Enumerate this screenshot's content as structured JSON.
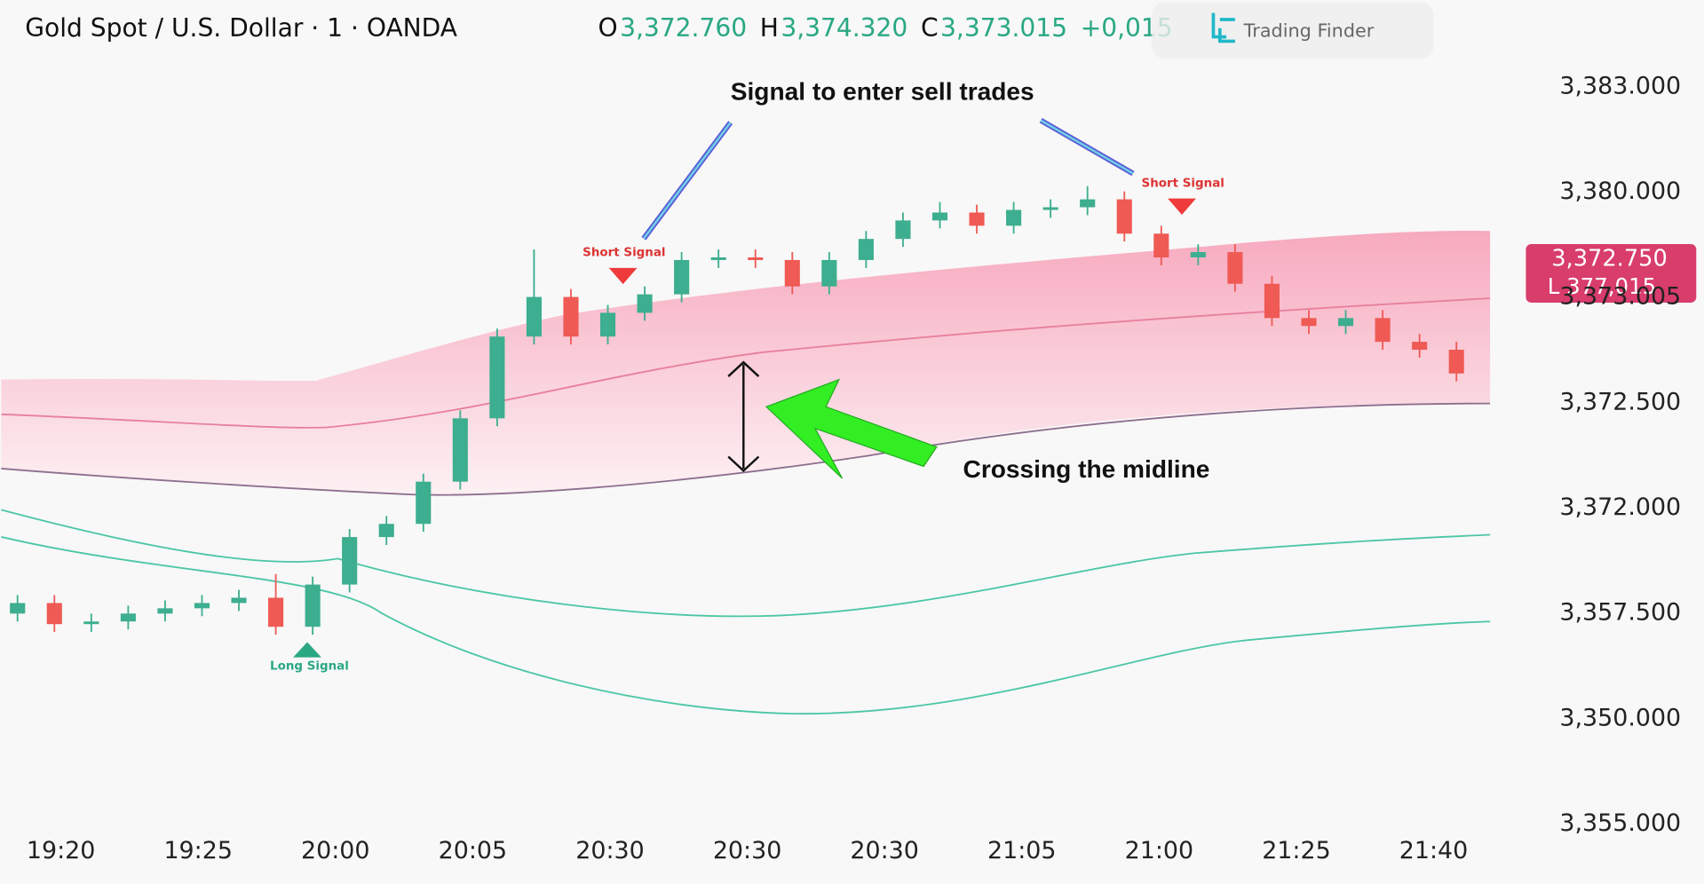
{
  "chart_data": {
    "type": "candlestick",
    "title": "Gold Spot / U.S. Dollar · 1 · OANDA",
    "ohlc_header": [
      {
        "key": "O",
        "value": "3,372.760"
      },
      {
        "key": "H",
        "value": "3,374.320"
      },
      {
        "key": "C",
        "value": "3,373.015"
      },
      {
        "key": "",
        "value": "+0,015"
      }
    ],
    "logo": "Trading Finder",
    "price_badge": [
      "3,372.750",
      "L 377,015"
    ],
    "y_axis_labels": [
      "3,383.000",
      "3,380.000",
      "3,373.005",
      "3,372.500",
      "3,372.000",
      "3,357.500",
      "3,350.000",
      "3,355.000"
    ],
    "x_axis_labels": [
      "19:20",
      "19:25",
      "20:00",
      "20:05",
      "20:30",
      "20:30",
      "20:30",
      "21:05",
      "21:00",
      "21:25",
      "21:40"
    ],
    "annotations": {
      "sell": "Signal to enter sell trades",
      "midline": "Crossing the midline",
      "short1": "Short Signal",
      "short2": "Short Signal",
      "long": "Long Signal"
    },
    "ylim": [
      3354.6,
      3384.2
    ],
    "up_color": "#3dae8f",
    "down_color": "#ef5a55",
    "open": [
      3363.0,
      3363.4,
      3362.6,
      3362.7,
      3363.0,
      3363.2,
      3363.4,
      3363.6,
      3362.5,
      3364.1,
      3365.9,
      3366.4,
      3368.0,
      3370.4,
      3373.5,
      3375.0,
      3373.5,
      3374.4,
      3375.1,
      3376.4,
      3376.5,
      3376.4,
      3375.4,
      3376.4,
      3377.2,
      3377.9,
      3378.2,
      3377.7,
      3378.3,
      3378.4,
      3378.7,
      3377.4,
      3376.5,
      3376.7,
      3375.5,
      3374.2,
      3373.9,
      3374.2,
      3373.3,
      3373.0
    ],
    "high": [
      3363.7,
      3363.7,
      3363.0,
      3363.3,
      3363.5,
      3363.7,
      3363.9,
      3364.5,
      3364.4,
      3366.2,
      3366.7,
      3368.3,
      3370.7,
      3373.8,
      3376.8,
      3375.3,
      3374.7,
      3375.4,
      3376.7,
      3376.8,
      3376.8,
      3376.7,
      3376.7,
      3377.5,
      3378.2,
      3378.6,
      3378.5,
      3378.6,
      3378.7,
      3379.2,
      3379.0,
      3377.7,
      3377.0,
      3377.0,
      3375.8,
      3374.5,
      3374.5,
      3374.5,
      3373.6,
      3373.3
    ],
    "low": [
      3362.7,
      3362.3,
      3362.3,
      3362.4,
      3362.7,
      3362.9,
      3363.1,
      3362.2,
      3362.2,
      3363.8,
      3365.6,
      3366.1,
      3367.7,
      3370.1,
      3373.2,
      3373.2,
      3373.2,
      3374.1,
      3374.8,
      3376.1,
      3376.1,
      3375.1,
      3375.1,
      3376.1,
      3376.9,
      3377.6,
      3377.4,
      3377.4,
      3378.0,
      3378.1,
      3377.1,
      3376.2,
      3376.2,
      3375.2,
      3373.9,
      3373.6,
      3373.6,
      3373.0,
      3372.7,
      3371.8
    ],
    "close": [
      3363.4,
      3362.6,
      3362.7,
      3363.0,
      3363.2,
      3363.4,
      3363.6,
      3362.5,
      3364.1,
      3365.9,
      3366.4,
      3368.0,
      3370.4,
      3373.5,
      3375.0,
      3373.5,
      3374.4,
      3375.1,
      3376.4,
      3376.5,
      3376.4,
      3375.4,
      3376.4,
      3377.2,
      3377.9,
      3378.2,
      3377.7,
      3378.3,
      3378.4,
      3378.7,
      3377.4,
      3376.5,
      3376.7,
      3375.5,
      3374.2,
      3373.9,
      3374.2,
      3373.3,
      3373.0,
      3372.1
    ]
  }
}
